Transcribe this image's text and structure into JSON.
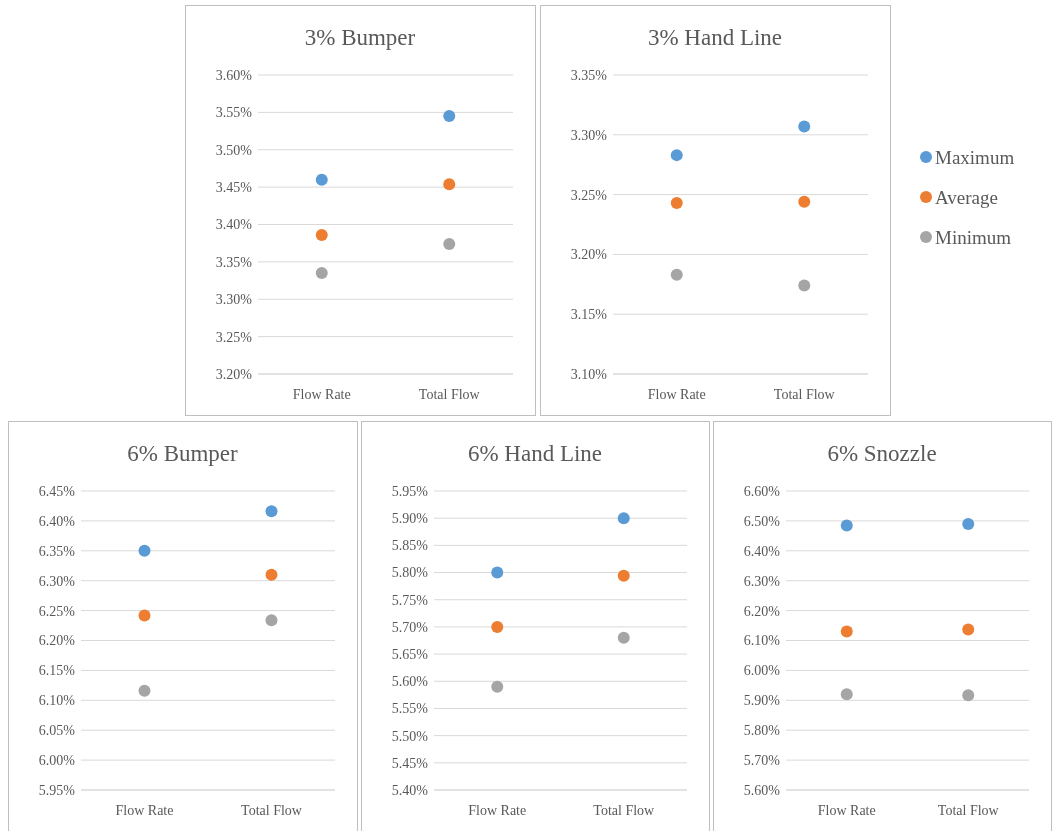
{
  "chart_data": [
    {
      "type": "scatter",
      "title": "3% Bumper",
      "categories": [
        "Flow Rate",
        "Total Flow"
      ],
      "ylim": [
        3.2,
        3.6
      ],
      "yticks": [
        {
          "value": 3.2,
          "label": "3.20%"
        },
        {
          "value": 3.25,
          "label": "3.25%"
        },
        {
          "value": 3.3,
          "label": "3.30%"
        },
        {
          "value": 3.35,
          "label": "3.35%"
        },
        {
          "value": 3.4,
          "label": "3.40%"
        },
        {
          "value": 3.45,
          "label": "3.45%"
        },
        {
          "value": 3.5,
          "label": "3.50%"
        },
        {
          "value": 3.55,
          "label": "3.55%"
        },
        {
          "value": 3.6,
          "label": "3.60%"
        }
      ],
      "grid": "y",
      "marker": "circle",
      "legend": false,
      "series": [
        {
          "color": "#5b9bd5",
          "values": [
            3.46,
            3.545
          ]
        },
        {
          "color": "#ed7d31",
          "values": [
            3.386,
            3.454
          ]
        },
        {
          "color": "#a5a5a5",
          "values": [
            3.335,
            3.374
          ]
        }
      ]
    },
    {
      "type": "scatter",
      "title": "3% Hand Line",
      "categories": [
        "Flow Rate",
        "Total Flow"
      ],
      "ylim": [
        3.1,
        3.35
      ],
      "yticks": [
        {
          "value": 3.1,
          "label": "3.10%"
        },
        {
          "value": 3.15,
          "label": "3.15%"
        },
        {
          "value": 3.2,
          "label": "3.20%"
        },
        {
          "value": 3.25,
          "label": "3.25%"
        },
        {
          "value": 3.3,
          "label": "3.30%"
        },
        {
          "value": 3.35,
          "label": "3.35%"
        }
      ],
      "grid": "y",
      "marker": "circle",
      "legend": "right",
      "series": [
        {
          "name": "Maximum",
          "color": "#5b9bd5",
          "values": [
            3.283,
            3.307
          ]
        },
        {
          "name": "Average",
          "color": "#ed7d31",
          "values": [
            3.243,
            3.244
          ]
        },
        {
          "name": "Minimum",
          "color": "#a5a5a5",
          "values": [
            3.183,
            3.174
          ]
        }
      ]
    },
    {
      "type": "scatter",
      "title": "6% Bumper",
      "categories": [
        "Flow Rate",
        "Total Flow"
      ],
      "ylim": [
        5.95,
        6.45
      ],
      "yticks": [
        {
          "value": 5.95,
          "label": "5.95%"
        },
        {
          "value": 6.0,
          "label": "6.00%"
        },
        {
          "value": 6.05,
          "label": "6.05%"
        },
        {
          "value": 6.1,
          "label": "6.10%"
        },
        {
          "value": 6.15,
          "label": "6.15%"
        },
        {
          "value": 6.2,
          "label": "6.20%"
        },
        {
          "value": 6.25,
          "label": "6.25%"
        },
        {
          "value": 6.3,
          "label": "6.30%"
        },
        {
          "value": 6.35,
          "label": "6.35%"
        },
        {
          "value": 6.4,
          "label": "6.40%"
        },
        {
          "value": 6.45,
          "label": "6.45%"
        }
      ],
      "grid": "y",
      "marker": "circle",
      "legend": false,
      "series": [
        {
          "color": "#5b9bd5",
          "values": [
            6.35,
            6.416
          ]
        },
        {
          "color": "#ed7d31",
          "values": [
            6.242,
            6.31
          ]
        },
        {
          "color": "#a5a5a5",
          "values": [
            6.116,
            6.234
          ]
        }
      ]
    },
    {
      "type": "scatter",
      "title": "6% Hand Line",
      "categories": [
        "Flow Rate",
        "Total Flow"
      ],
      "ylim": [
        5.4,
        5.95
      ],
      "yticks": [
        {
          "value": 5.4,
          "label": "5.40%"
        },
        {
          "value": 5.45,
          "label": "5.45%"
        },
        {
          "value": 5.5,
          "label": "5.50%"
        },
        {
          "value": 5.55,
          "label": "5.55%"
        },
        {
          "value": 5.6,
          "label": "5.60%"
        },
        {
          "value": 5.65,
          "label": "5.65%"
        },
        {
          "value": 5.7,
          "label": "5.70%"
        },
        {
          "value": 5.75,
          "label": "5.75%"
        },
        {
          "value": 5.8,
          "label": "5.80%"
        },
        {
          "value": 5.85,
          "label": "5.85%"
        },
        {
          "value": 5.9,
          "label": "5.90%"
        },
        {
          "value": 5.95,
          "label": "5.95%"
        }
      ],
      "grid": "y",
      "marker": "circle",
      "legend": false,
      "series": [
        {
          "color": "#5b9bd5",
          "values": [
            5.8,
            5.9
          ]
        },
        {
          "color": "#ed7d31",
          "values": [
            5.7,
            5.794
          ]
        },
        {
          "color": "#a5a5a5",
          "values": [
            5.59,
            5.68
          ]
        }
      ]
    },
    {
      "type": "scatter",
      "title": "6% Snozzle",
      "categories": [
        "Flow Rate",
        "Total Flow"
      ],
      "ylim": [
        5.6,
        6.6
      ],
      "yticks": [
        {
          "value": 5.6,
          "label": "5.60%"
        },
        {
          "value": 5.7,
          "label": "5.70%"
        },
        {
          "value": 5.8,
          "label": "5.80%"
        },
        {
          "value": 5.9,
          "label": "5.90%"
        },
        {
          "value": 6.0,
          "label": "6.00%"
        },
        {
          "value": 6.1,
          "label": "6.10%"
        },
        {
          "value": 6.2,
          "label": "6.20%"
        },
        {
          "value": 6.3,
          "label": "6.30%"
        },
        {
          "value": 6.4,
          "label": "6.40%"
        },
        {
          "value": 6.5,
          "label": "6.50%"
        },
        {
          "value": 6.6,
          "label": "6.60%"
        }
      ],
      "grid": "y",
      "marker": "circle",
      "legend": false,
      "series": [
        {
          "color": "#5b9bd5",
          "values": [
            6.485,
            6.49
          ]
        },
        {
          "color": "#ed7d31",
          "values": [
            6.13,
            6.137
          ]
        },
        {
          "color": "#a5a5a5",
          "values": [
            5.92,
            5.917
          ]
        }
      ]
    }
  ]
}
